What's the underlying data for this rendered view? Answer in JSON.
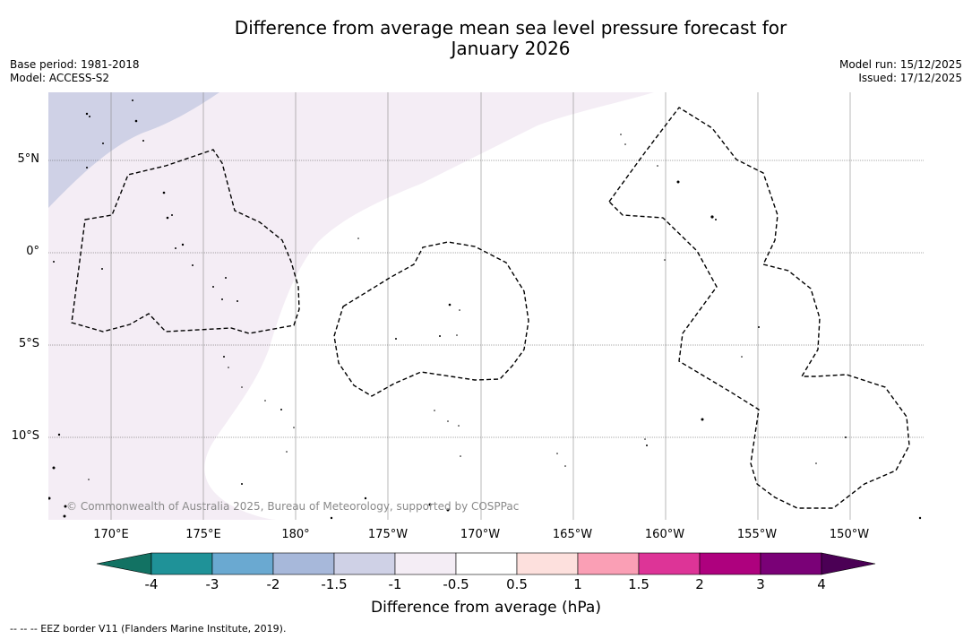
{
  "title": {
    "line1": "Difference from average mean sea level pressure forecast for",
    "line2": "January 2026"
  },
  "meta": {
    "base_period": "Base period: 1981-2018",
    "model": "Model: ACCESS-S2",
    "model_run": "Model run: 15/12/2025",
    "issued": "Issued: 17/12/2025"
  },
  "map": {
    "lat_labels": [
      "5°N",
      "0°",
      "5°S",
      "10°S"
    ],
    "lat_values": [
      5,
      0,
      -5,
      -10
    ],
    "lon_labels": [
      "170°E",
      "175°E",
      "180°",
      "175°W",
      "170°W",
      "165°W",
      "160°W",
      "155°W",
      "150°W"
    ],
    "lon_values": [
      170,
      175,
      180,
      -175,
      -170,
      -165,
      -160,
      -155,
      -150
    ],
    "copyright": "© Commonwealth of Australia 2025, Bureau of Meteorology, supported by COSPPac",
    "eez_note": "-- -- -- EEZ border V11 (Flanders Marine Institute, 2019)."
  },
  "colorbar": {
    "ticks": [
      "-4",
      "-3",
      "-2",
      "-1.5",
      "-1",
      "-0.5",
      "0.5",
      "1",
      "1.5",
      "2",
      "3",
      "4"
    ],
    "colors": [
      "#127263",
      "#1f9298",
      "#6aa9d1",
      "#a7b8da",
      "#cfd1e6",
      "#f4edf5",
      "#ffffff",
      "#fde0dd",
      "#fa9fb5",
      "#dd3497",
      "#ae017e",
      "#7a0177",
      "#4b0055"
    ],
    "label": "Difference from average (hPa)"
  }
}
